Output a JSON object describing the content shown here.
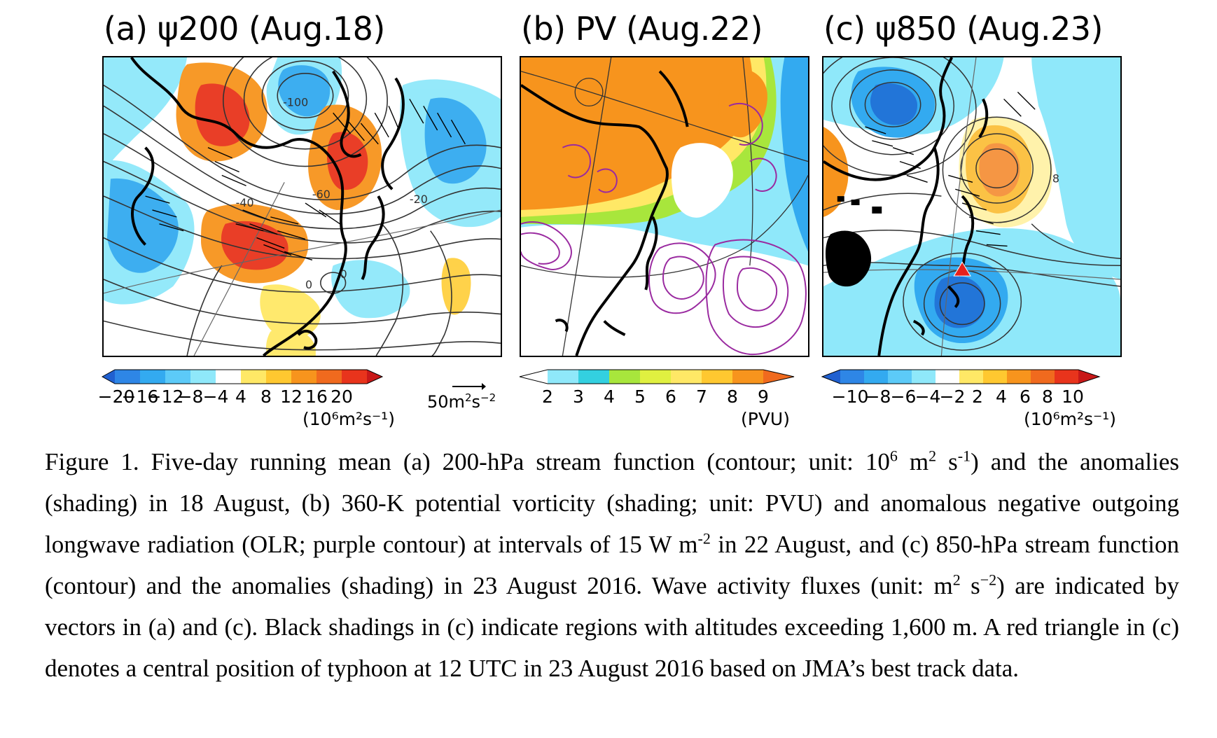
{
  "panels": [
    {
      "title": "(a) ψ200 (Aug.18)",
      "contour_labels": [
        "-100",
        "-40",
        "-60",
        "-20",
        "0",
        "0"
      ]
    },
    {
      "title": "(b) PV (Aug.22)"
    },
    {
      "title": "(c) ψ850 (Aug.23)",
      "contour_labels": [
        "8"
      ]
    }
  ],
  "colorbars": [
    {
      "ticks": [
        "−20",
        "−16",
        "−12",
        "−8",
        "−4",
        "4",
        "8",
        "12",
        "16",
        "20"
      ],
      "unit": "(10⁶m²s⁻¹)"
    },
    {
      "ticks": [
        "2",
        "3",
        "4",
        "5",
        "6",
        "7",
        "8",
        "9"
      ],
      "unit": "(PVU)"
    },
    {
      "ticks": [
        "−10",
        "−8",
        "−6",
        "−4",
        "−2",
        "2",
        "4",
        "6",
        "8",
        "10"
      ],
      "unit": "(10⁶m²s⁻¹)"
    }
  ],
  "vector_reference": {
    "value": "50",
    "unit_m": "m",
    "unit_sup1": "2",
    "unit_s": "s",
    "unit_sup2": "−2"
  },
  "caption": {
    "p1": "Figure 1. Five-day running mean (a) 200-hPa stream function (contour; unit: 10",
    "s1": "6",
    "p2": " m",
    "s2": "2",
    "p3": " s",
    "s3": "-1",
    "p4": ") and the anomalies (shading) in 18 August, (b) 360-K potential vorticity (shading; unit: PVU) and anomalous negative outgoing longwave radiation (OLR; purple contour) at intervals of 15 W m",
    "s4": "-2",
    "p5": " in 22 August, and (c) 850-hPa stream function (contour) and the anomalies (shading) in 23 August 2016. Wave activity fluxes (unit: m",
    "s5": "2",
    "p6": " s",
    "s6": "−2",
    "p7": ") are indicated by vectors in (a) and (c). Black shadings in (c) indicate regions with altitudes exceeding 1,600 m. A red triangle in (c) denotes a central position of typhoon at 12 UTC in 23 August 2016 based on JMA’s best track data."
  },
  "colors": {
    "shade_blue": "#33aaf0",
    "shade_cyan": "#8fe8fa",
    "shade_orange": "#f7941d",
    "shade_red": "#e8341c",
    "pv_green": "#a8e63c",
    "olr_purple": "#9a2aa0",
    "typhoon_marker": "#e8201c"
  }
}
